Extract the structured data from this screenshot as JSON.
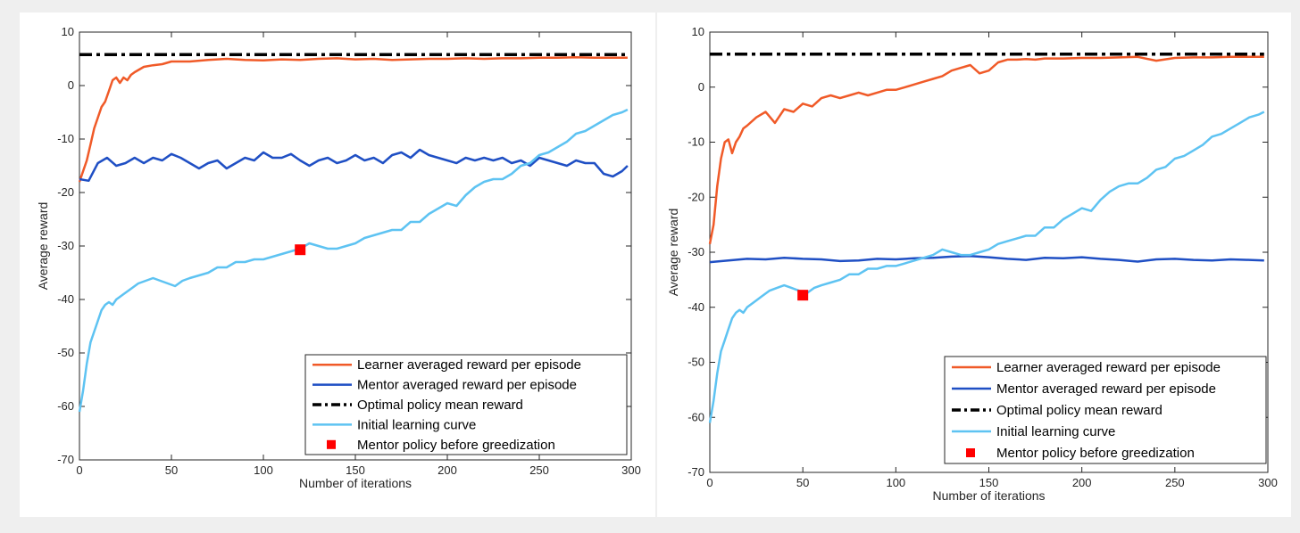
{
  "chart_data": [
    {
      "type": "line",
      "title": "",
      "xlabel": "Number of iterations",
      "ylabel": "Average reward",
      "xlim": [
        0,
        300
      ],
      "ylim": [
        -70,
        10
      ],
      "xticks": [
        "0",
        "50",
        "100",
        "150",
        "200",
        "250",
        "300"
      ],
      "yticks": [
        "-70",
        "-60",
        "-50",
        "-40",
        "-30",
        "-20",
        "-10",
        "0",
        "10"
      ],
      "grid": false,
      "legend_position": "bottom-right",
      "series": [
        {
          "name": "Learner averaged reward per episode",
          "color": "#f05a28",
          "style": "solid",
          "x": [
            0,
            2,
            4,
            6,
            8,
            10,
            12,
            14,
            16,
            18,
            20,
            22,
            24,
            26,
            28,
            30,
            35,
            40,
            45,
            50,
            60,
            70,
            80,
            90,
            100,
            110,
            120,
            130,
            140,
            150,
            160,
            170,
            180,
            190,
            200,
            210,
            220,
            230,
            240,
            250,
            260,
            270,
            280,
            290,
            298
          ],
          "y": [
            -18,
            -16,
            -14,
            -11,
            -8,
            -6,
            -4,
            -3,
            -1,
            1,
            1.5,
            0.5,
            1.5,
            1,
            2,
            2.5,
            3.5,
            3.8,
            4,
            4.5,
            4.5,
            4.8,
            5,
            4.8,
            4.7,
            4.9,
            4.8,
            5.0,
            5.1,
            4.9,
            5.0,
            4.8,
            4.9,
            5.0,
            5.0,
            5.1,
            5.0,
            5.1,
            5.1,
            5.2,
            5.2,
            5.3,
            5.2,
            5.2,
            5.2
          ]
        },
        {
          "name": "Mentor averaged reward per episode",
          "color": "#1f4fc4",
          "style": "solid",
          "x": [
            0,
            5,
            10,
            15,
            20,
            25,
            30,
            35,
            40,
            45,
            50,
            55,
            60,
            65,
            70,
            75,
            80,
            85,
            90,
            95,
            100,
            105,
            110,
            115,
            120,
            125,
            130,
            135,
            140,
            145,
            150,
            155,
            160,
            165,
            170,
            175,
            180,
            185,
            190,
            195,
            200,
            205,
            210,
            215,
            220,
            225,
            230,
            235,
            240,
            245,
            250,
            255,
            260,
            265,
            270,
            275,
            280,
            285,
            290,
            295,
            298
          ],
          "y": [
            -17.5,
            -17.8,
            -14.5,
            -13.5,
            -15,
            -14.5,
            -13.5,
            -14.5,
            -13.5,
            -14,
            -12.8,
            -13.5,
            -14.5,
            -15.5,
            -14.5,
            -14,
            -15.5,
            -14.5,
            -13.5,
            -14,
            -12.5,
            -13.5,
            -13.5,
            -12.8,
            -14,
            -15,
            -14,
            -13.5,
            -14.5,
            -14,
            -13,
            -14,
            -13.5,
            -14.5,
            -13,
            -12.5,
            -13.5,
            -12,
            -13,
            -13.5,
            -14,
            -14.5,
            -13.5,
            -14,
            -13.5,
            -14,
            -13.5,
            -14.5,
            -14,
            -15,
            -13.5,
            -14,
            -14.5,
            -15,
            -14,
            -14.5,
            -14.5,
            -16.5,
            -17,
            -16,
            -15
          ]
        },
        {
          "name": "Optimal policy mean reward",
          "color": "#000000",
          "style": "dash-dot",
          "x": [
            0,
            298
          ],
          "y": [
            5.8,
            5.8
          ]
        },
        {
          "name": "Initial learning curve",
          "color": "#5ec3f2",
          "style": "solid",
          "x": [
            0,
            2,
            4,
            6,
            8,
            10,
            12,
            14,
            16,
            18,
            20,
            24,
            28,
            32,
            36,
            40,
            44,
            48,
            52,
            56,
            60,
            65,
            70,
            75,
            80,
            85,
            90,
            95,
            100,
            105,
            110,
            115,
            120,
            125,
            130,
            135,
            140,
            145,
            150,
            155,
            160,
            165,
            170,
            175,
            180,
            185,
            190,
            195,
            200,
            205,
            210,
            215,
            220,
            225,
            230,
            235,
            240,
            245,
            250,
            255,
            260,
            265,
            270,
            275,
            280,
            285,
            290,
            295,
            298
          ],
          "y": [
            -61,
            -57,
            -52,
            -48,
            -46,
            -44,
            -42,
            -41,
            -40.5,
            -41,
            -40,
            -39,
            -38,
            -37,
            -36.5,
            -36,
            -36.5,
            -37,
            -37.5,
            -36.5,
            -36,
            -35.5,
            -35,
            -34,
            -34,
            -33,
            -33,
            -32.5,
            -32.5,
            -32,
            -31.5,
            -31,
            -30.5,
            -29.5,
            -30,
            -30.5,
            -30.5,
            -30,
            -29.5,
            -28.5,
            -28,
            -27.5,
            -27,
            -27,
            -25.5,
            -25.5,
            -24,
            -23,
            -22,
            -22.5,
            -20.5,
            -19,
            -18,
            -17.5,
            -17.5,
            -16.5,
            -15,
            -14.5,
            -13,
            -12.5,
            -11.5,
            -10.5,
            -9,
            -8.5,
            -7.5,
            -6.5,
            -5.5,
            -5,
            -4.5
          ]
        },
        {
          "name": "Mentor policy before greedization",
          "color": "#ff0000",
          "style": "marker-square",
          "x": [
            120
          ],
          "y": [
            -30.7
          ]
        }
      ]
    },
    {
      "type": "line",
      "title": "",
      "xlabel": "Number of iterations",
      "ylabel": "Average reward",
      "xlim": [
        0,
        300
      ],
      "ylim": [
        -70,
        10
      ],
      "xticks": [
        "0",
        "50",
        "100",
        "150",
        "200",
        "250",
        "300"
      ],
      "yticks": [
        "-70",
        "-60",
        "-50",
        "-40",
        "-30",
        "-20",
        "-10",
        "0",
        "10"
      ],
      "grid": false,
      "legend_position": "bottom-right",
      "series": [
        {
          "name": "Learner averaged reward per episode",
          "color": "#f05a28",
          "style": "solid",
          "x": [
            0,
            2,
            4,
            6,
            8,
            10,
            12,
            14,
            16,
            18,
            20,
            25,
            30,
            35,
            40,
            45,
            50,
            55,
            60,
            65,
            70,
            75,
            80,
            85,
            90,
            95,
            100,
            105,
            110,
            115,
            120,
            125,
            130,
            135,
            140,
            145,
            150,
            155,
            160,
            165,
            170,
            175,
            180,
            190,
            200,
            210,
            220,
            230,
            240,
            250,
            260,
            270,
            280,
            290,
            298
          ],
          "y": [
            -28.5,
            -25,
            -18,
            -13,
            -10,
            -9.5,
            -12,
            -10,
            -9,
            -7.5,
            -7,
            -5.5,
            -4.5,
            -6.5,
            -4,
            -4.5,
            -3,
            -3.5,
            -2,
            -1.5,
            -2,
            -1.5,
            -1,
            -1.5,
            -1,
            -0.5,
            -0.5,
            0,
            0.5,
            1,
            1.5,
            2,
            3,
            3.5,
            4,
            2.5,
            3,
            4.5,
            5,
            5,
            5.1,
            5,
            5.2,
            5.2,
            5.3,
            5.3,
            5.4,
            5.5,
            4.8,
            5.3,
            5.4,
            5.4,
            5.5,
            5.5,
            5.5
          ]
        },
        {
          "name": "Mentor averaged reward per episode",
          "color": "#1f4fc4",
          "style": "solid",
          "x": [
            0,
            10,
            20,
            30,
            40,
            50,
            60,
            70,
            80,
            90,
            100,
            110,
            120,
            130,
            140,
            150,
            160,
            170,
            180,
            190,
            200,
            210,
            220,
            230,
            240,
            250,
            260,
            270,
            280,
            290,
            298
          ],
          "y": [
            -31.8,
            -31.5,
            -31.2,
            -31.3,
            -31,
            -31.2,
            -31.3,
            -31.6,
            -31.5,
            -31.2,
            -31.3,
            -31.1,
            -31,
            -30.8,
            -30.7,
            -30.9,
            -31.2,
            -31.4,
            -31,
            -31.1,
            -30.9,
            -31.2,
            -31.4,
            -31.7,
            -31.3,
            -31.2,
            -31.4,
            -31.5,
            -31.3,
            -31.4,
            -31.5
          ]
        },
        {
          "name": "Optimal policy mean reward",
          "color": "#000000",
          "style": "dash-dot",
          "x": [
            0,
            298
          ],
          "y": [
            6,
            6
          ]
        },
        {
          "name": "Initial learning curve",
          "color": "#5ec3f2",
          "style": "solid",
          "x": [
            0,
            2,
            4,
            6,
            8,
            10,
            12,
            14,
            16,
            18,
            20,
            24,
            28,
            32,
            36,
            40,
            44,
            48,
            52,
            56,
            60,
            65,
            70,
            75,
            80,
            85,
            90,
            95,
            100,
            105,
            110,
            115,
            120,
            125,
            130,
            135,
            140,
            145,
            150,
            155,
            160,
            165,
            170,
            175,
            180,
            185,
            190,
            195,
            200,
            205,
            210,
            215,
            220,
            225,
            230,
            235,
            240,
            245,
            250,
            255,
            260,
            265,
            270,
            275,
            280,
            285,
            290,
            295,
            298
          ],
          "y": [
            -61,
            -57,
            -52,
            -48,
            -46,
            -44,
            -42,
            -41,
            -40.5,
            -41,
            -40,
            -39,
            -38,
            -37,
            -36.5,
            -36,
            -36.5,
            -37,
            -37.5,
            -36.5,
            -36,
            -35.5,
            -35,
            -34,
            -34,
            -33,
            -33,
            -32.5,
            -32.5,
            -32,
            -31.5,
            -31,
            -30.5,
            -29.5,
            -30,
            -30.5,
            -30.5,
            -30,
            -29.5,
            -28.5,
            -28,
            -27.5,
            -27,
            -27,
            -25.5,
            -25.5,
            -24,
            -23,
            -22,
            -22.5,
            -20.5,
            -19,
            -18,
            -17.5,
            -17.5,
            -16.5,
            -15,
            -14.5,
            -13,
            -12.5,
            -11.5,
            -10.5,
            -9,
            -8.5,
            -7.5,
            -6.5,
            -5.5,
            -5,
            -4.5
          ]
        },
        {
          "name": "Mentor policy before greedization",
          "color": "#ff0000",
          "style": "marker-square",
          "x": [
            50
          ],
          "y": [
            -37.8
          ]
        }
      ]
    }
  ]
}
